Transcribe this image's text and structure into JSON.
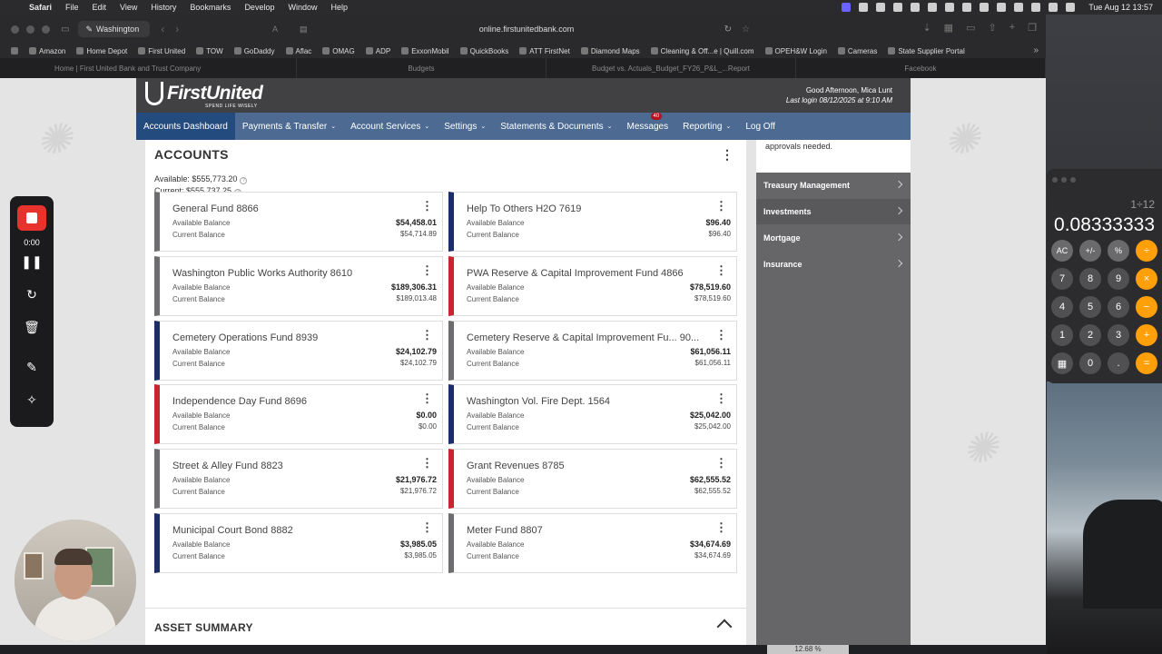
{
  "menubar": {
    "app": "Safari",
    "items": [
      "File",
      "Edit",
      "View",
      "History",
      "Bookmarks",
      "Develop",
      "Window",
      "Help"
    ],
    "clock": "Tue Aug 12  13:57"
  },
  "browser": {
    "tab_group": "Washington",
    "url": "online.firstunitedbank.com",
    "favorites": [
      "Amazon",
      "Home Depot",
      "First United",
      "TOW",
      "GoDaddy",
      "Aflac",
      "OMAG",
      "ADP",
      "ExxonMobil",
      "QuickBooks",
      "ATT FirstNet",
      "Diamond Maps",
      "Cleaning & Off...e | Quill.com",
      "OPEH&W Login",
      "Cameras",
      "State Supplier Portal"
    ],
    "tabs": [
      "Home | First United Bank and Trust Company",
      "Budgets",
      "Budget vs. Actuals_Budget_FY26_P&L_...Report",
      "Facebook"
    ]
  },
  "site": {
    "logo_name": "FirstUnited",
    "logo_tag": "SPEND LIFE WISELY",
    "greeting": "Good Afternoon, Mica Lunt",
    "last_login": "Last login 08/12/2025 at 9:10 AM",
    "nav": [
      {
        "label": "Accounts Dashboard",
        "caret": ""
      },
      {
        "label": "Payments & Transfer",
        "caret": "⌄"
      },
      {
        "label": "Account Services",
        "caret": "⌄"
      },
      {
        "label": "Settings",
        "caret": "⌄"
      },
      {
        "label": "Statements & Documents",
        "caret": "⌄"
      },
      {
        "label": "Messages",
        "caret": ""
      },
      {
        "label": "Reporting",
        "caret": "⌄"
      },
      {
        "label": "Log Off",
        "caret": ""
      }
    ],
    "messages_badge": "40"
  },
  "accounts": {
    "title": "ACCOUNTS",
    "available_total": "Available: $555,773.20",
    "current_total": "Current: $555,737.25",
    "available_label": "Available Balance",
    "current_label": "Current Balance",
    "cards": [
      {
        "name": "General Fund 8866",
        "available": "$54,458.01",
        "current": "$54,714.89",
        "color": "gray"
      },
      {
        "name": "Help To Others H2O 7619",
        "available": "$96.40",
        "current": "$96.40",
        "color": "navy"
      },
      {
        "name": "Washington Public Works Authority 8610",
        "available": "$189,306.31",
        "current": "$189,013.48",
        "color": "gray"
      },
      {
        "name": "PWA Reserve & Capital Improvement Fund 4866",
        "available": "$78,519.60",
        "current": "$78,519.60",
        "color": "red"
      },
      {
        "name": "Cemetery Operations Fund 8939",
        "available": "$24,102.79",
        "current": "$24,102.79",
        "color": "navy"
      },
      {
        "name": "Cemetery Reserve & Capital Improvement Fu... 90...",
        "available": "$61,056.11",
        "current": "$61,056.11",
        "color": "gray"
      },
      {
        "name": "Independence Day Fund 8696",
        "available": "$0.00",
        "current": "$0.00",
        "color": "red"
      },
      {
        "name": "Washington Vol. Fire Dept. 1564",
        "available": "$25,042.00",
        "current": "$25,042.00",
        "color": "navy"
      },
      {
        "name": "Street & Alley Fund 8823",
        "available": "$21,976.72",
        "current": "$21,976.72",
        "color": "gray"
      },
      {
        "name": "Grant Revenues 8785",
        "available": "$62,555.52",
        "current": "$62,555.52",
        "color": "red"
      },
      {
        "name": "Municipal Court Bond 8882",
        "available": "$3,985.05",
        "current": "$3,985.05",
        "color": "navy"
      },
      {
        "name": "Meter Fund 8807",
        "available": "$34,674.69",
        "current": "$34,674.69",
        "color": "gray"
      }
    ]
  },
  "asset_summary": {
    "title": "ASSET SUMMARY"
  },
  "sidebar": {
    "note": "approvals needed.",
    "items": [
      "Treasury Management",
      "Investments",
      "Mortgage",
      "Insurance"
    ]
  },
  "recorder": {
    "time": "0:00"
  },
  "calculator": {
    "expression": "1÷12",
    "result": "0.08333333",
    "keys": [
      [
        "AC",
        "+/-",
        "%",
        "÷"
      ],
      [
        "7",
        "8",
        "9",
        "×"
      ],
      [
        "4",
        "5",
        "6",
        "−"
      ],
      [
        "1",
        "2",
        "3",
        "+"
      ],
      [
        "▦",
        "0",
        ".",
        "="
      ]
    ]
  },
  "status_zoom": "12.68 %",
  "colors": {
    "nav": "#4c6a92",
    "nav_active": "#244b7d",
    "gray": "#6d6d6f",
    "navy": "#1b2d6b",
    "red": "#c8262e",
    "calc_op": "#ff9f0a"
  }
}
